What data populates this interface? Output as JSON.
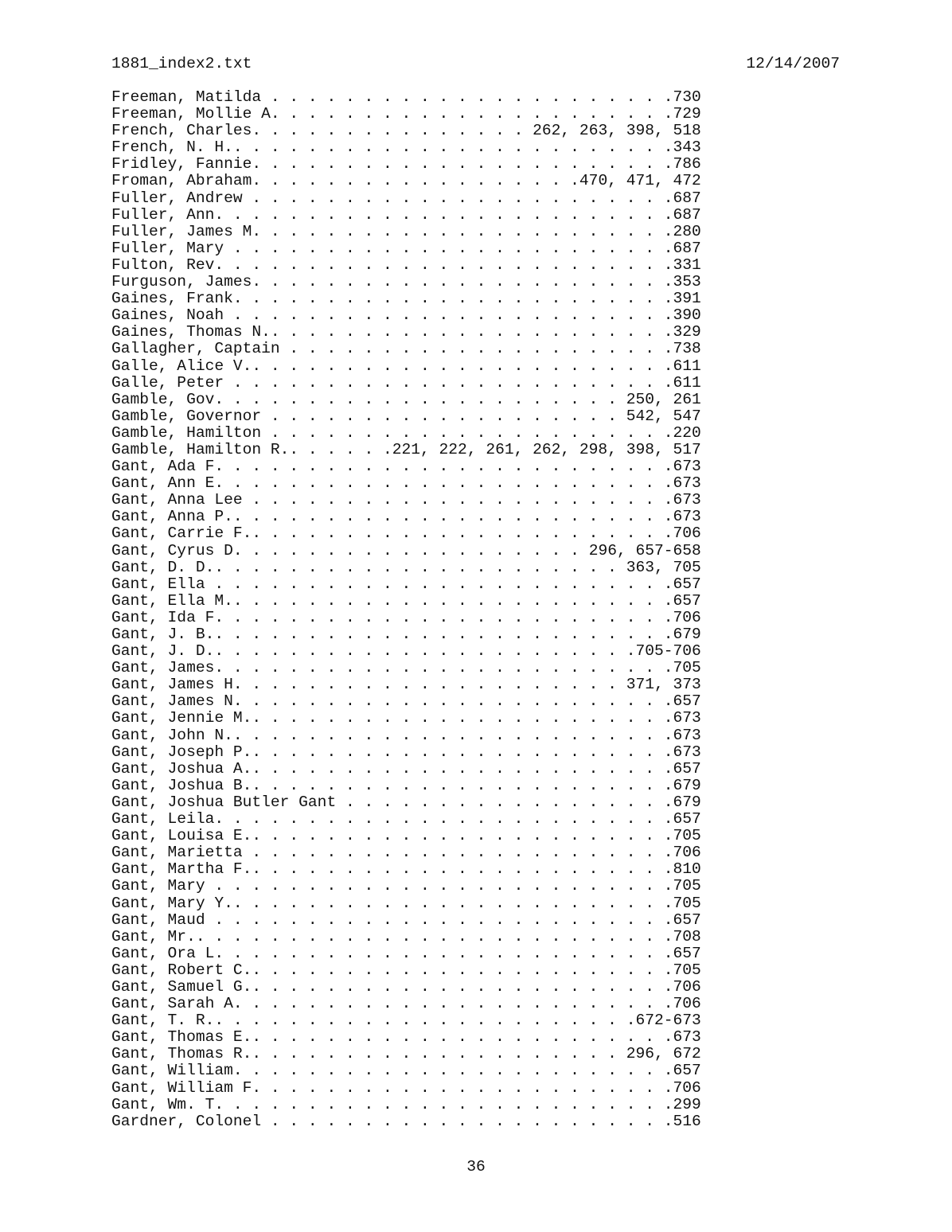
{
  "header": {
    "filename": "1881_index2.txt",
    "date": "12/14/2007"
  },
  "entries": [
    {
      "name": "Freeman, Matilda",
      "pages": "730"
    },
    {
      "name": "Freeman, Mollie A.",
      "pages": "729"
    },
    {
      "name": "French, Charles.",
      "pages": "262, 263, 398, 518"
    },
    {
      "name": "French, N. H..",
      "pages": "343"
    },
    {
      "name": "Fridley, Fannie.",
      "pages": "786"
    },
    {
      "name": "Froman, Abraham.",
      "pages": "470, 471, 472"
    },
    {
      "name": "Fuller, Andrew",
      "pages": "687"
    },
    {
      "name": "Fuller, Ann.",
      "pages": "687"
    },
    {
      "name": "Fuller, James M.",
      "pages": "280"
    },
    {
      "name": "Fuller, Mary",
      "pages": "687"
    },
    {
      "name": "Fulton, Rev.",
      "pages": "331"
    },
    {
      "name": "Furguson, James.",
      "pages": "353"
    },
    {
      "name": "Gaines, Frank.",
      "pages": "391"
    },
    {
      "name": "Gaines, Noah",
      "pages": "390"
    },
    {
      "name": "Gaines, Thomas N.",
      "pages": "329"
    },
    {
      "name": "Gallagher, Captain",
      "pages": "738"
    },
    {
      "name": "Galle, Alice V.",
      "pages": "611"
    },
    {
      "name": "Galle, Peter",
      "pages": "611"
    },
    {
      "name": "Gamble, Gov.",
      "pages": "250, 261"
    },
    {
      "name": "Gamble, Governor",
      "pages": "542, 547"
    },
    {
      "name": "Gamble, Hamilton",
      "pages": "220"
    },
    {
      "name": "Gamble, Hamilton R.",
      "pages": "221, 222, 261, 262, 298, 398, 517"
    },
    {
      "name": "Gant, Ada F.",
      "pages": "673"
    },
    {
      "name": "Gant, Ann E.",
      "pages": "673"
    },
    {
      "name": "Gant, Anna Lee",
      "pages": "673"
    },
    {
      "name": "Gant, Anna P.",
      "pages": "673"
    },
    {
      "name": "Gant, Carrie F.",
      "pages": "706"
    },
    {
      "name": "Gant, Cyrus D.",
      "pages": "296, 657-658"
    },
    {
      "name": "Gant, D. D.",
      "pages": "363, 705"
    },
    {
      "name": "Gant, Ella",
      "pages": "657"
    },
    {
      "name": "Gant, Ella M.",
      "pages": "657"
    },
    {
      "name": "Gant, Ida F.",
      "pages": "706"
    },
    {
      "name": "Gant, J. B.",
      "pages": "679"
    },
    {
      "name": "Gant, J. D.",
      "pages": "705-706"
    },
    {
      "name": "Gant, James.",
      "pages": "705"
    },
    {
      "name": "Gant, James H.",
      "pages": "371, 373"
    },
    {
      "name": "Gant, James N.",
      "pages": "657"
    },
    {
      "name": "Gant, Jennie M.",
      "pages": "673"
    },
    {
      "name": "Gant, John N.",
      "pages": "673"
    },
    {
      "name": "Gant, Joseph P.",
      "pages": "673"
    },
    {
      "name": "Gant, Joshua A.",
      "pages": "657"
    },
    {
      "name": "Gant, Joshua B.",
      "pages": "679"
    },
    {
      "name": "Gant, Joshua Butler Gant",
      "pages": "679"
    },
    {
      "name": "Gant, Leila.",
      "pages": "657"
    },
    {
      "name": "Gant, Louisa E.",
      "pages": "705"
    },
    {
      "name": "Gant, Marietta",
      "pages": "706"
    },
    {
      "name": "Gant, Martha F.",
      "pages": "810"
    },
    {
      "name": "Gant, Mary",
      "pages": "705"
    },
    {
      "name": "Gant, Mary Y.",
      "pages": "705"
    },
    {
      "name": "Gant, Maud",
      "pages": "657"
    },
    {
      "name": "Gant, Mr.",
      "pages": "708"
    },
    {
      "name": "Gant, Ora L.",
      "pages": "657"
    },
    {
      "name": "Gant, Robert C.",
      "pages": "705"
    },
    {
      "name": "Gant, Samuel G.",
      "pages": "706"
    },
    {
      "name": "Gant, Sarah A.",
      "pages": "706"
    },
    {
      "name": "Gant, T. R.",
      "pages": "672-673"
    },
    {
      "name": "Gant, Thomas E.",
      "pages": "673"
    },
    {
      "name": "Gant, Thomas R.",
      "pages": "296, 672"
    },
    {
      "name": "Gant, William.",
      "pages": "657"
    },
    {
      "name": "Gant, William F.",
      "pages": "706"
    },
    {
      "name": "Gant, Wm. T.",
      "pages": "299"
    },
    {
      "name": "Gardner, Colonel",
      "pages": "516"
    }
  ],
  "footer": {
    "page_number": "36"
  }
}
